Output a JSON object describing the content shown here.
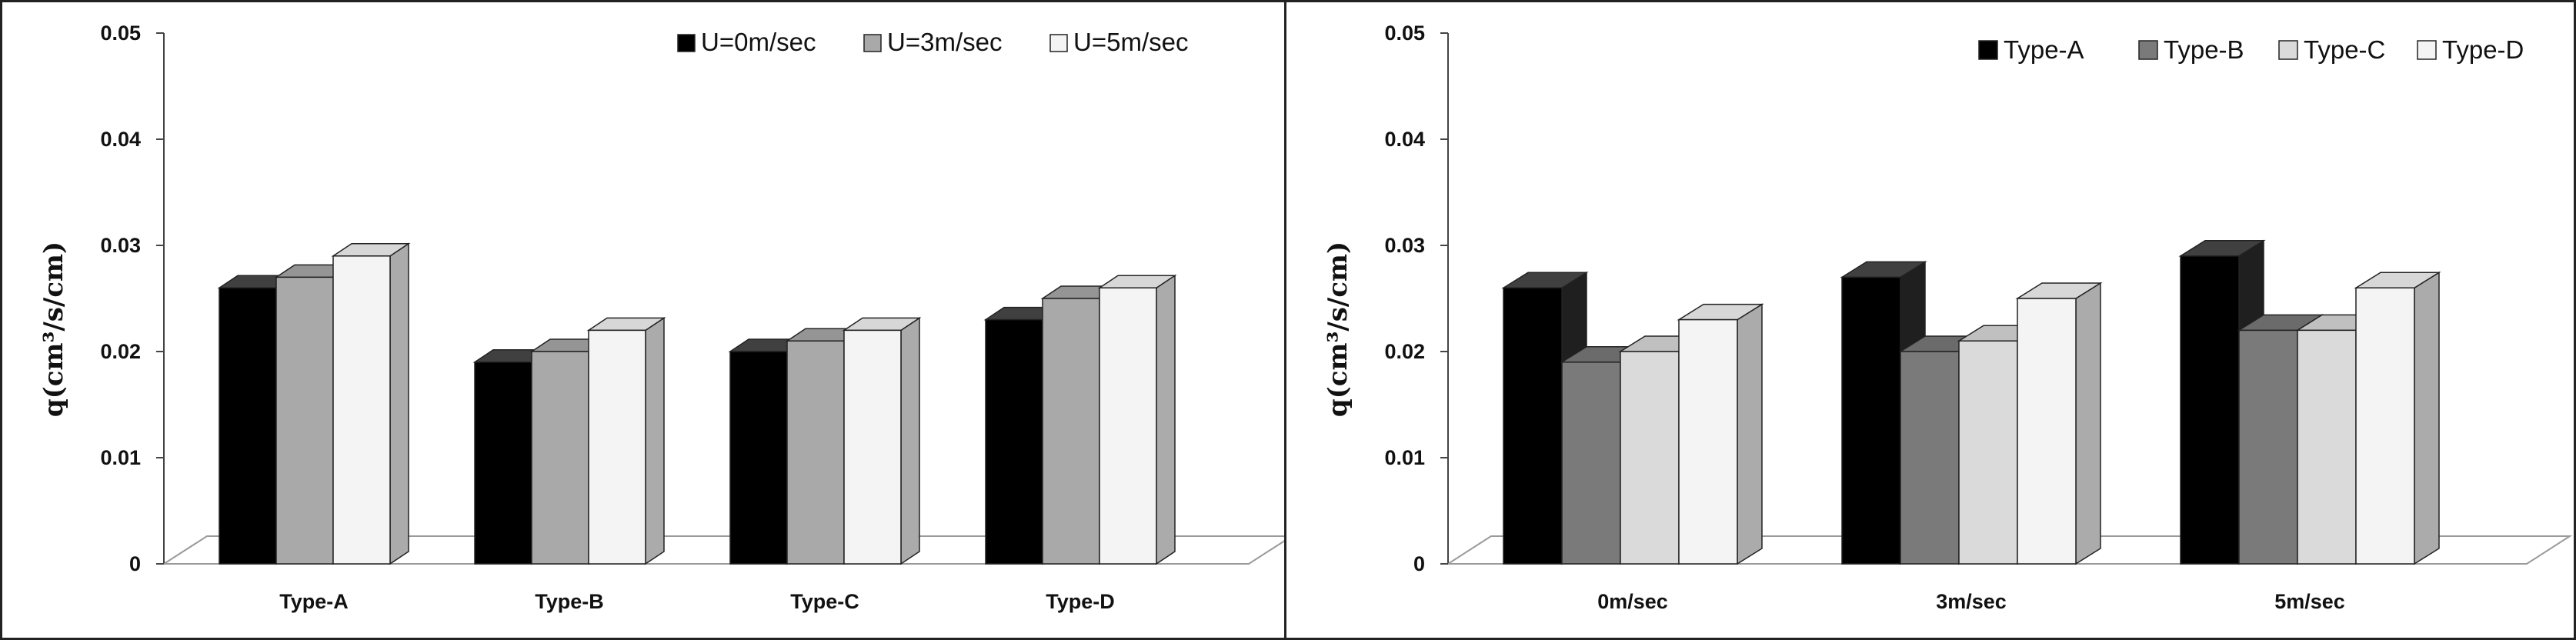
{
  "chart_data": [
    {
      "type": "bar",
      "categories": [
        "Type-A",
        "Type-B",
        "Type-C",
        "Type-D"
      ],
      "series": [
        {
          "name": "U=0m/sec",
          "values": [
            0.026,
            0.019,
            0.02,
            0.023
          ]
        },
        {
          "name": "U=3m/sec",
          "values": [
            0.027,
            0.02,
            0.021,
            0.025
          ]
        },
        {
          "name": "U=5m/sec",
          "values": [
            0.029,
            0.022,
            0.022,
            0.026
          ]
        }
      ],
      "ylabel": "q(cm³/s/cm)",
      "ylim": [
        0,
        0.05
      ],
      "yticks": [
        "0",
        "0.01",
        "0.02",
        "0.03",
        "0.04",
        "0.05"
      ],
      "legend_position": "top-right",
      "grid": false,
      "colors": [
        "#000000",
        "#a9a9a9",
        "#f4f4f4"
      ]
    },
    {
      "type": "bar",
      "categories": [
        "0m/sec",
        "3m/sec",
        "5m/sec"
      ],
      "series": [
        {
          "name": "Type-A",
          "values": [
            0.026,
            0.027,
            0.029
          ]
        },
        {
          "name": "Type-B",
          "values": [
            0.019,
            0.02,
            0.022
          ]
        },
        {
          "name": "Type-C",
          "values": [
            0.02,
            0.021,
            0.022
          ]
        },
        {
          "name": "Type-D",
          "values": [
            0.023,
            0.025,
            0.026
          ]
        }
      ],
      "ylabel": "q(cm³/s/cm)",
      "ylim": [
        0,
        0.05
      ],
      "yticks": [
        "0",
        "0.01",
        "0.02",
        "0.03",
        "0.04",
        "0.05"
      ],
      "legend_position": "top-right",
      "grid": false,
      "colors": [
        "#000000",
        "#7a7a7a",
        "#dadada",
        "#f4f4f4"
      ]
    }
  ]
}
